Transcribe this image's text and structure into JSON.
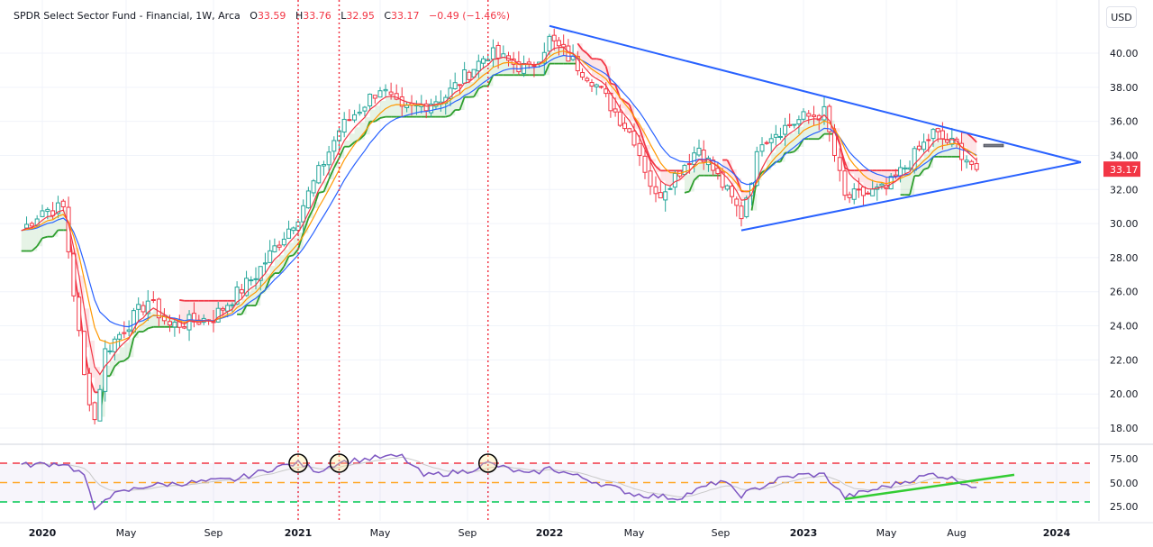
{
  "header": {
    "symbol_title": "SPDR Select Sector Fund - Financial, 1W, Arca",
    "open_label": "O",
    "open": "33.59",
    "high_label": "H",
    "high": "33.76",
    "low_label": "L",
    "low": "32.95",
    "close_label": "C",
    "close": "33.17",
    "change": "−0.49 (−1.46%)"
  },
  "price_axis": {
    "currency_button": "USD",
    "last_price_tag": "33.17",
    "ticks": [
      "40.00",
      "38.00",
      "36.00",
      "34.00",
      "32.00",
      "30.00",
      "28.00",
      "26.00",
      "24.00",
      "22.00",
      "20.00",
      "18.00"
    ]
  },
  "rsi_axis": {
    "ticks": [
      "75.00",
      "50.00",
      "25.00"
    ]
  },
  "time_axis": {
    "ticks": [
      {
        "label": "2020",
        "bold": true
      },
      {
        "label": "May",
        "bold": false
      },
      {
        "label": "Sep",
        "bold": false
      },
      {
        "label": "2021",
        "bold": true
      },
      {
        "label": "May",
        "bold": false
      },
      {
        "label": "Sep",
        "bold": false
      },
      {
        "label": "2022",
        "bold": true
      },
      {
        "label": "May",
        "bold": false
      },
      {
        "label": "Sep",
        "bold": false
      },
      {
        "label": "2023",
        "bold": true
      },
      {
        "label": "May",
        "bold": false
      },
      {
        "label": "Aug",
        "bold": false
      },
      {
        "label": "2024",
        "bold": true
      }
    ]
  },
  "colors": {
    "up": "#26a69a",
    "down": "#f23645",
    "trendline": "#2962ff",
    "ema_fast": "#f23645",
    "ema_mid": "#ff9800",
    "ema_slow": "#2962ff",
    "stop_up": "#2e9e2e",
    "stop_down": "#f23645",
    "rsi_line": "#7e57c2",
    "rsi_overbought": "#f23645",
    "rsi_mid": "#ffa726",
    "rsi_oversold": "#00c853",
    "rsi_trendline": "#33cc33"
  },
  "chart_data": [
    {
      "type": "candlestick",
      "title": "SPDR Select Sector Fund - Financial (XLF), 1W, Arca",
      "ylabel": "USD",
      "ylim": [
        17,
        42
      ],
      "grid": true,
      "x_ticks": [
        "2020",
        "May",
        "Sep",
        "2021",
        "May",
        "Sep",
        "2022",
        "May",
        "Sep",
        "2023",
        "May",
        "Aug",
        "2024"
      ],
      "last": {
        "open": 33.59,
        "high": 33.76,
        "low": 32.95,
        "close": 33.17,
        "change": -0.49,
        "change_pct": -1.46
      },
      "approx_close_path": [
        {
          "x": "2019-12",
          "y": 29.6
        },
        {
          "x": "2020-01",
          "y": 30.8
        },
        {
          "x": "2020-02",
          "y": 30.9
        },
        {
          "x": "2020-03",
          "y": 21.0
        },
        {
          "x": "2020-03-mid",
          "y": 18.5
        },
        {
          "x": "2020-04",
          "y": 22.5
        },
        {
          "x": "2020-06",
          "y": 25.5
        },
        {
          "x": "2020-07",
          "y": 24.0
        },
        {
          "x": "2020-09",
          "y": 24.5
        },
        {
          "x": "2020-11",
          "y": 27.0
        },
        {
          "x": "2021-01",
          "y": 30.5
        },
        {
          "x": "2021-02",
          "y": 33.0
        },
        {
          "x": "2021-03",
          "y": 35.5
        },
        {
          "x": "2021-05",
          "y": 38.0
        },
        {
          "x": "2021-06",
          "y": 36.5
        },
        {
          "x": "2021-08",
          "y": 37.5
        },
        {
          "x": "2021-10",
          "y": 40.0
        },
        {
          "x": "2021-12",
          "y": 39.0
        },
        {
          "x": "2022-01",
          "y": 40.8
        },
        {
          "x": "2022-03",
          "y": 38.5
        },
        {
          "x": "2022-05",
          "y": 35.0
        },
        {
          "x": "2022-06",
          "y": 31.5
        },
        {
          "x": "2022-08",
          "y": 34.5
        },
        {
          "x": "2022-10",
          "y": 30.5
        },
        {
          "x": "2022-11",
          "y": 35.0
        },
        {
          "x": "2023-01",
          "y": 36.2
        },
        {
          "x": "2023-02",
          "y": 36.5
        },
        {
          "x": "2023-03",
          "y": 31.5
        },
        {
          "x": "2023-05",
          "y": 32.0
        },
        {
          "x": "2023-07",
          "y": 35.3
        },
        {
          "x": "2023-08",
          "y": 34.5
        },
        {
          "x": "2023-09",
          "y": 33.17
        }
      ],
      "overlays": [
        {
          "name": "EMA fast",
          "color": "#f23645"
        },
        {
          "name": "EMA mid",
          "color": "#ff9800"
        },
        {
          "name": "EMA slow",
          "color": "#2962ff"
        },
        {
          "name": "Trailing stop (up / down ribbon)",
          "colors": [
            "#2e9e2e",
            "#f23645"
          ]
        }
      ],
      "annotations": [
        {
          "type": "trendline",
          "label": "upper triangle line",
          "from": {
            "x": "2022-01",
            "y": 41.6
          },
          "to": {
            "x": "2023-11",
            "y": 33.6
          }
        },
        {
          "type": "trendline",
          "label": "lower triangle line",
          "from": {
            "x": "2022-10",
            "y": 29.6
          },
          "to": {
            "x": "2023-11",
            "y": 33.6
          }
        },
        {
          "type": "vline",
          "style": "dotted red",
          "x": "2021-01"
        },
        {
          "type": "vline",
          "style": "dotted red",
          "x": "2021-03"
        },
        {
          "type": "vline",
          "style": "dotted red",
          "x": "2021-10"
        }
      ]
    },
    {
      "type": "line",
      "title": "RSI",
      "ylim": [
        15,
        80
      ],
      "levels": {
        "overbought": 70,
        "mid": 50,
        "oversold": 30
      },
      "y_ticks": [
        "75.00",
        "50.00",
        "25.00"
      ],
      "approx_values": [
        {
          "x": "2019-12",
          "y": 68
        },
        {
          "x": "2020-02",
          "y": 70
        },
        {
          "x": "2020-03",
          "y": 58
        },
        {
          "x": "2020-03-mid",
          "y": 20
        },
        {
          "x": "2020-04",
          "y": 35
        },
        {
          "x": "2020-06",
          "y": 47
        },
        {
          "x": "2020-08",
          "y": 50
        },
        {
          "x": "2020-10",
          "y": 53
        },
        {
          "x": "2020-12",
          "y": 66
        },
        {
          "x": "2021-01",
          "y": 70
        },
        {
          "x": "2021-02",
          "y": 62
        },
        {
          "x": "2021-03",
          "y": 71
        },
        {
          "x": "2021-05",
          "y": 76
        },
        {
          "x": "2021-06",
          "y": 77
        },
        {
          "x": "2021-07",
          "y": 57
        },
        {
          "x": "2021-09",
          "y": 62
        },
        {
          "x": "2021-10",
          "y": 70
        },
        {
          "x": "2021-12",
          "y": 58
        },
        {
          "x": "2022-01",
          "y": 65
        },
        {
          "x": "2022-03",
          "y": 52
        },
        {
          "x": "2022-05",
          "y": 38
        },
        {
          "x": "2022-07",
          "y": 34
        },
        {
          "x": "2022-09",
          "y": 52
        },
        {
          "x": "2022-10",
          "y": 37
        },
        {
          "x": "2022-12",
          "y": 55
        },
        {
          "x": "2023-01",
          "y": 58
        },
        {
          "x": "2023-02",
          "y": 58
        },
        {
          "x": "2023-03",
          "y": 35
        },
        {
          "x": "2023-05",
          "y": 46
        },
        {
          "x": "2023-07",
          "y": 59
        },
        {
          "x": "2023-08",
          "y": 53
        },
        {
          "x": "2023-09",
          "y": 45
        }
      ],
      "annotations": [
        {
          "type": "circle",
          "x": "2021-01",
          "y": 70
        },
        {
          "type": "circle",
          "x": "2021-03",
          "y": 70
        },
        {
          "type": "circle",
          "x": "2021-10",
          "y": 70
        },
        {
          "type": "trendline",
          "color": "#33cc33",
          "from": {
            "x": "2023-03",
            "y": 33
          },
          "to": {
            "x": "2023-11",
            "y": 58
          }
        }
      ]
    }
  ]
}
